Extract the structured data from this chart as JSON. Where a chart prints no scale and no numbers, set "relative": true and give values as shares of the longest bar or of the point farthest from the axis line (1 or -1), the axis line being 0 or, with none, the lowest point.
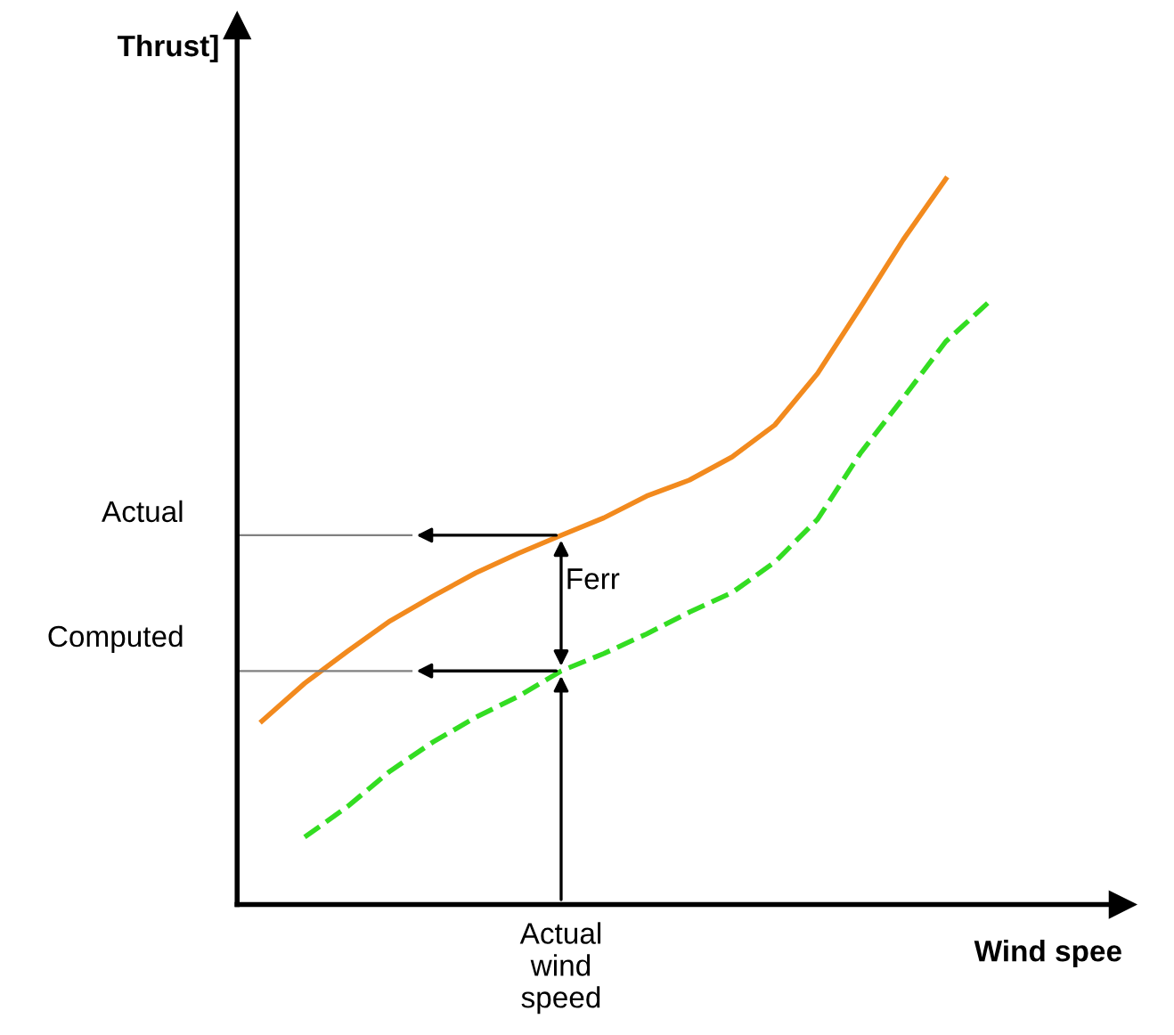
{
  "chart_data": {
    "type": "line",
    "relative": true,
    "xlabel": "Wind spee",
    "ylabel": "Thrust]",
    "categories": [
      null,
      null,
      null,
      null,
      null,
      null,
      null,
      null,
      null,
      null,
      null,
      null,
      null,
      null,
      null,
      null,
      null,
      null
    ],
    "annotations": [
      "Actual",
      "Computed",
      "Ferr",
      "Actual\nwind\nspeed"
    ],
    "series": [
      {
        "color": "#f28a1e",
        "line_style": "solid",
        "values": [
          0.253,
          0.305,
          0.349,
          0.391,
          0.425,
          0.457,
          0.484,
          0.509,
          0.533,
          0.563,
          0.585,
          0.617,
          0.661,
          0.732,
          0.823,
          0.916,
          1.0,
          null
        ]
      },
      {
        "color": "#33dd22",
        "line_style": "dashed",
        "values": [
          null,
          0.093,
          0.135,
          0.184,
          0.224,
          0.258,
          0.287,
          0.322,
          0.346,
          0.373,
          0.403,
          0.43,
          0.472,
          0.531,
          0.622,
          0.698,
          0.776,
          0.83
        ]
      }
    ]
  }
}
